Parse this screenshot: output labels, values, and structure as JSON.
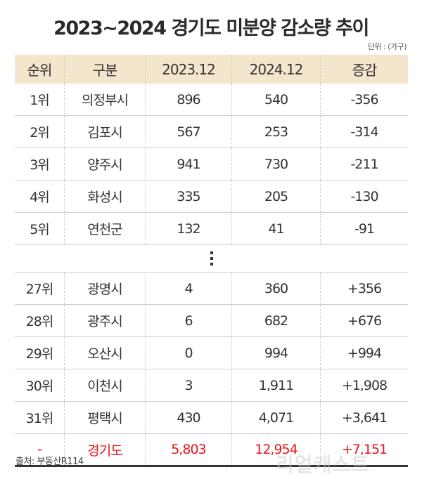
{
  "title": "2023~2024 경기도 미분양 감소량 추이",
  "unit": "단위 : (가구)",
  "table": {
    "headers": [
      "순위",
      "구분",
      "2023.12",
      "2024.12",
      "증감"
    ],
    "top_rows": [
      [
        "1위",
        "의정부시",
        "896",
        "540",
        "-356"
      ],
      [
        "2위",
        "김포시",
        "567",
        "253",
        "-314"
      ],
      [
        "3위",
        "양주시",
        "941",
        "730",
        "-211"
      ],
      [
        "4위",
        "화성시",
        "335",
        "205",
        "-130"
      ],
      [
        "5위",
        "연천군",
        "132",
        "41",
        "-91"
      ]
    ],
    "bottom_rows": [
      [
        "27위",
        "광명시",
        "4",
        "360",
        "+356"
      ],
      [
        "28위",
        "광주시",
        "6",
        "682",
        "+676"
      ],
      [
        "29위",
        "오산시",
        "0",
        "994",
        "+994"
      ],
      [
        "30위",
        "이천시",
        "3",
        "1,911",
        "+1,908"
      ],
      [
        "31위",
        "평택시",
        "430",
        "4,071",
        "+3,641"
      ]
    ],
    "total_row": [
      "-",
      "경기도",
      "5,803",
      "12,954",
      "+7,151"
    ]
  },
  "colors": {
    "header_bg": "#f3e6cc",
    "total_text": "#e8141b"
  },
  "source": "출처: 부동산R114",
  "watermark": "리얼캐스트"
}
